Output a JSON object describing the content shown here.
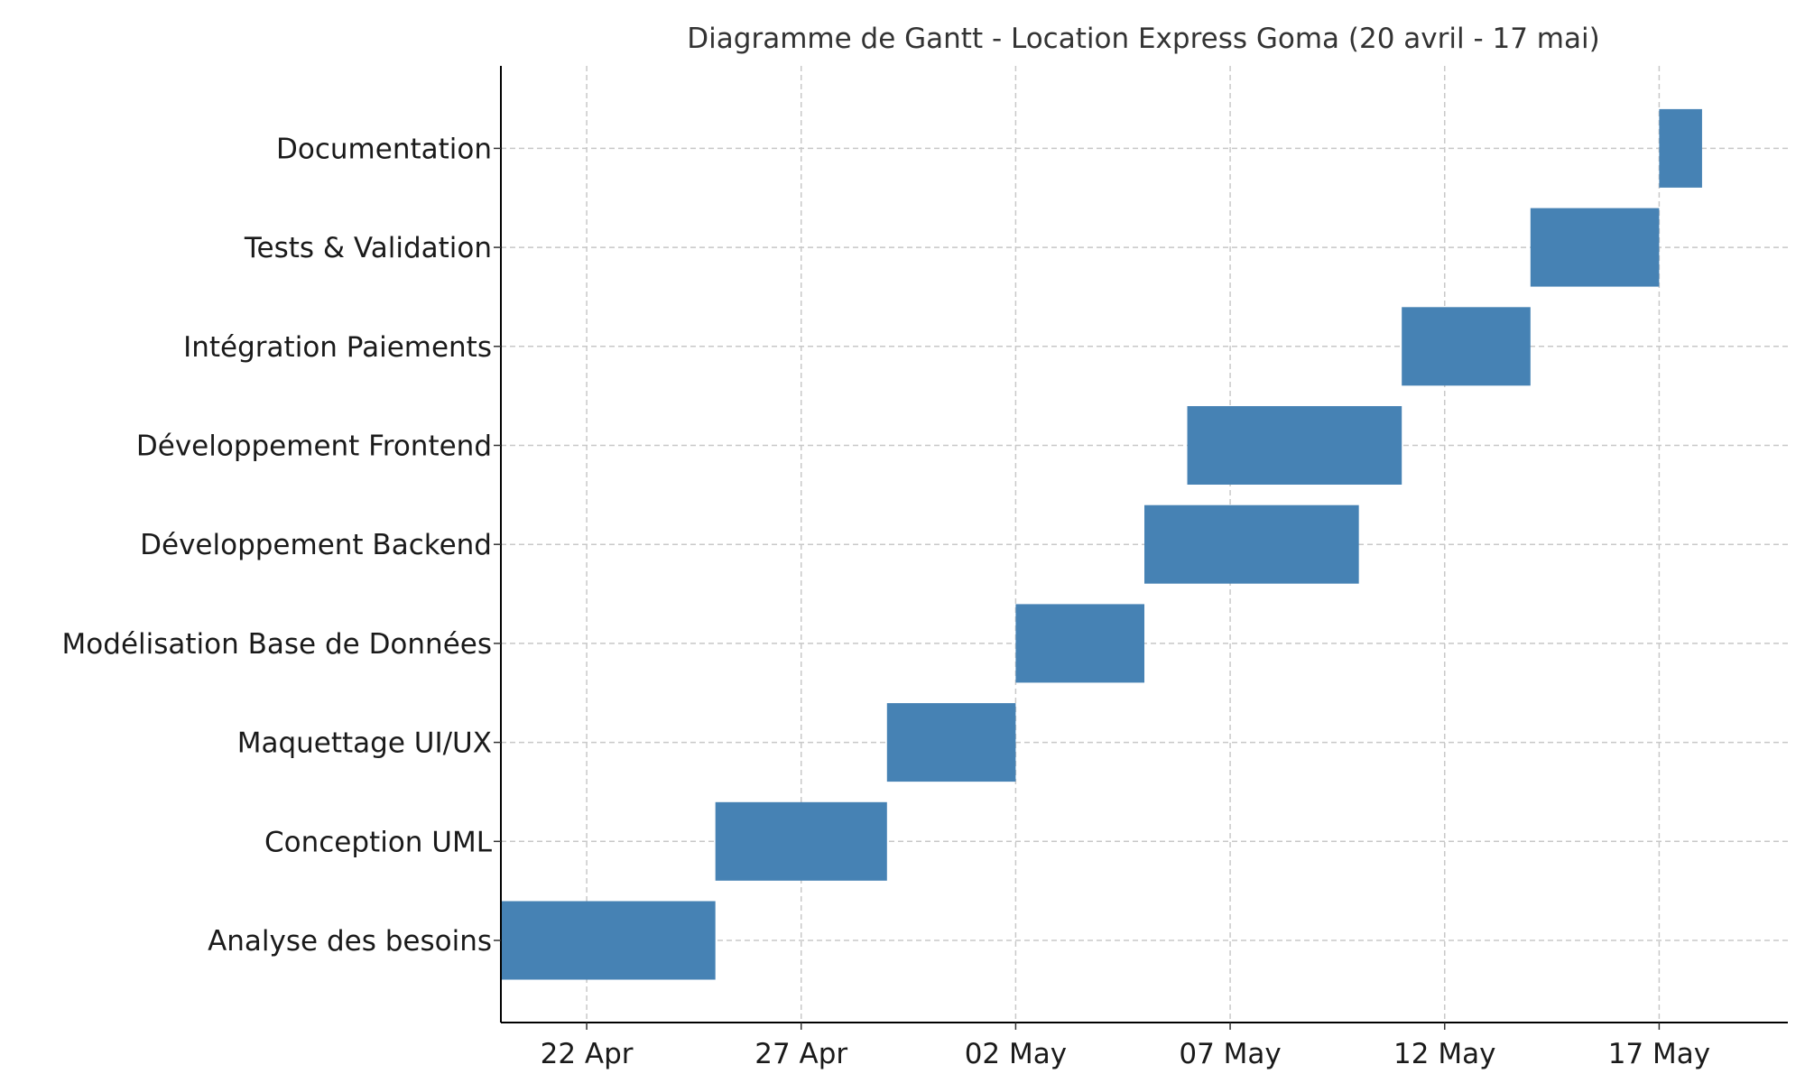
{
  "chart_data": {
    "type": "gantt",
    "title": "Diagramme de Gantt - Location Express Goma (20 avril - 17 mai)",
    "bar_color": "#4682b4",
    "x_axis": {
      "type": "date",
      "range": [
        "2025-04-20",
        "2025-05-20"
      ],
      "ticks": [
        {
          "date": "2025-04-22",
          "label": "22 Apr"
        },
        {
          "date": "2025-04-27",
          "label": "27 Apr"
        },
        {
          "date": "2025-05-02",
          "label": "02 May"
        },
        {
          "date": "2025-05-07",
          "label": "07 May"
        },
        {
          "date": "2025-05-12",
          "label": "12 May"
        },
        {
          "date": "2025-05-17",
          "label": "17 May"
        }
      ]
    },
    "grid": true,
    "tasks": [
      {
        "name": "Analyse des besoins",
        "start": "2025-04-20",
        "end": "2025-04-25"
      },
      {
        "name": "Conception UML",
        "start": "2025-04-25",
        "end": "2025-04-29"
      },
      {
        "name": "Maquettage UI/UX",
        "start": "2025-04-29",
        "end": "2025-05-02"
      },
      {
        "name": "Modélisation Base de Données",
        "start": "2025-05-02",
        "end": "2025-05-05"
      },
      {
        "name": "Développement Backend",
        "start": "2025-05-05",
        "end": "2025-05-10"
      },
      {
        "name": "Développement Frontend",
        "start": "2025-05-06",
        "end": "2025-05-11"
      },
      {
        "name": "Intégration Paiements",
        "start": "2025-05-11",
        "end": "2025-05-14"
      },
      {
        "name": "Tests & Validation",
        "start": "2025-05-14",
        "end": "2025-05-17"
      },
      {
        "name": "Documentation",
        "start": "2025-05-17",
        "end": "2025-05-18"
      }
    ]
  }
}
